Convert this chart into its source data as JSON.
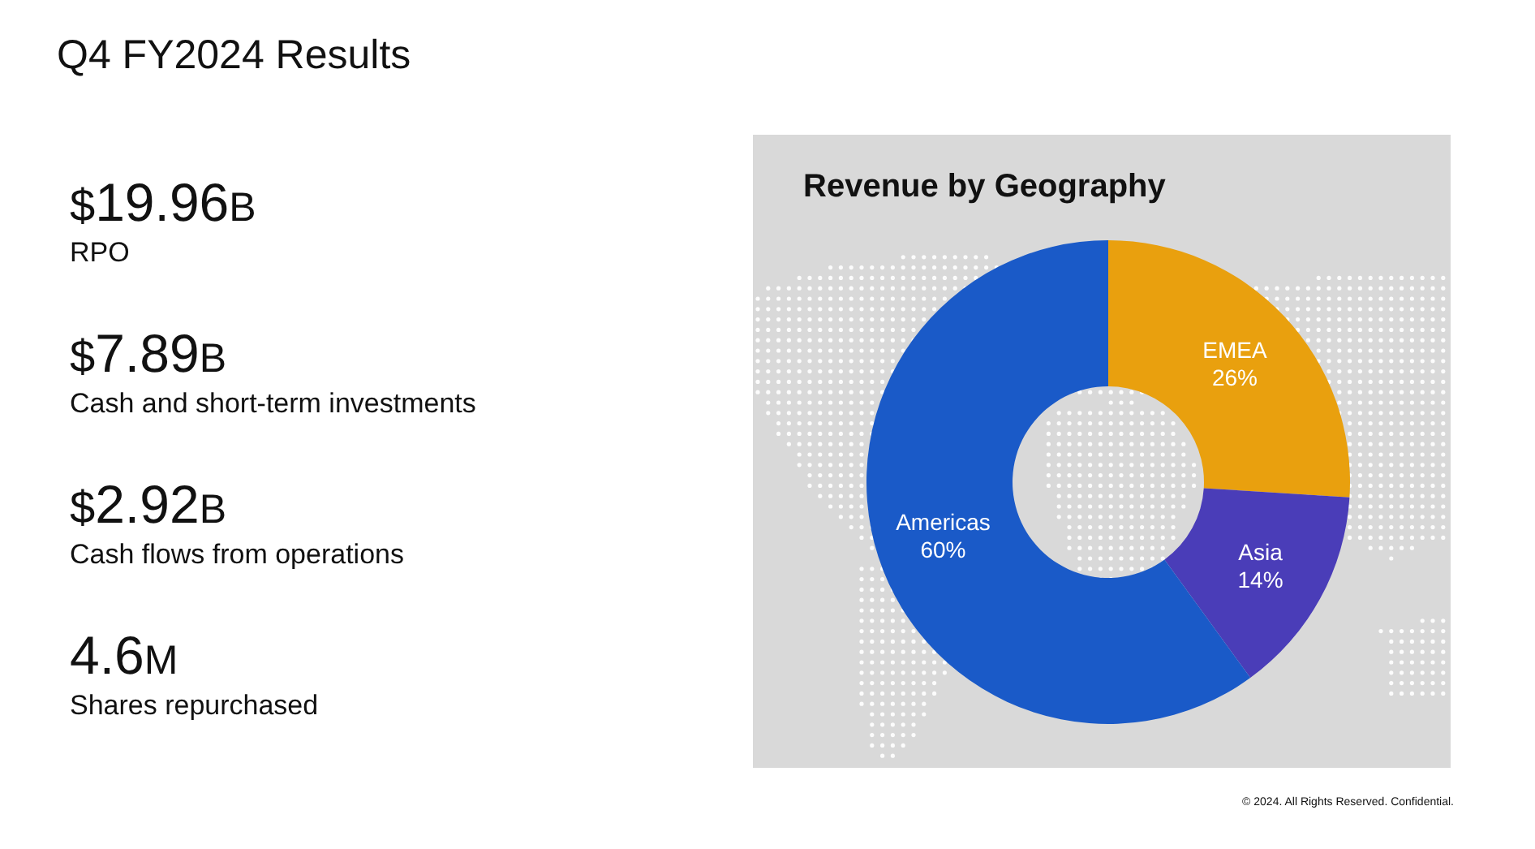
{
  "chart_data": [
    {
      "type": "other",
      "title": "Q4 FY2024 Results",
      "annotations": [
        "$19.96B",
        "RPO",
        "$7.89B",
        "Cash and short-term investments",
        "$2.92B",
        "Cash flows from operations",
        "4.6M",
        "Shares repurchased"
      ]
    },
    {
      "type": "donut",
      "title": "Revenue by Geography",
      "categories": [
        "EMEA",
        "Asia",
        "Americas"
      ],
      "values": [
        26,
        14,
        60
      ],
      "colors": [
        "#e9a00e",
        "#4a3db8",
        "#1a5ac8"
      ],
      "value_labels": [
        "26%",
        "14%",
        "60%"
      ],
      "annotations": [
        "© 2024. All Rights Reserved. Confidential."
      ]
    }
  ]
}
